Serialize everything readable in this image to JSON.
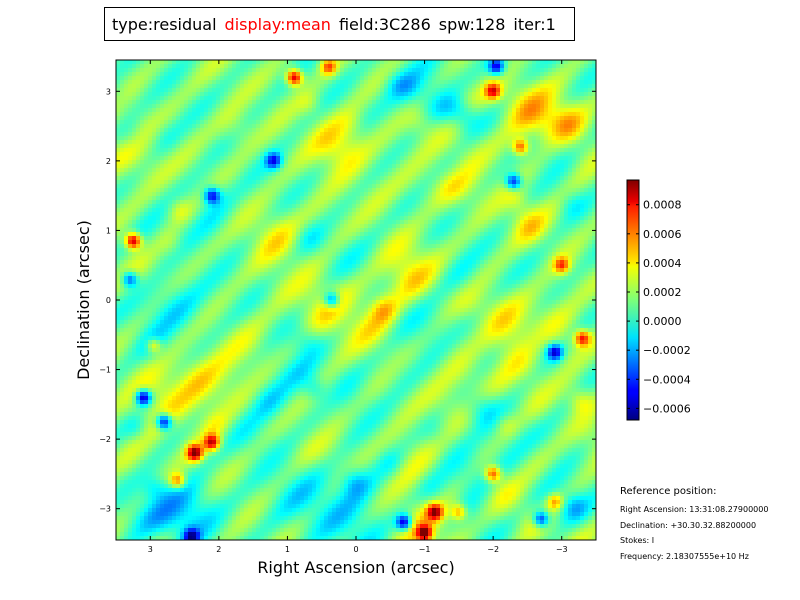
{
  "header": {
    "items": [
      {
        "key": "type",
        "text": "type:residual",
        "active": false
      },
      {
        "key": "display",
        "text": "display:mean",
        "active": true
      },
      {
        "key": "field",
        "text": "field:3C286",
        "active": false
      },
      {
        "key": "spw",
        "text": "spw:128",
        "active": false
      },
      {
        "key": "iter",
        "text": "iter:1",
        "active": false
      }
    ]
  },
  "chart_data": {
    "type": "heatmap",
    "xlabel": "Right Ascension (arcsec)",
    "ylabel": "Declination (arcsec)",
    "xlim": [
      3.5,
      -3.5
    ],
    "ylim": [
      -3.45,
      3.45
    ],
    "x_ticks": [
      3,
      2,
      1,
      0,
      -1,
      -2,
      -3
    ],
    "y_ticks": [
      3,
      2,
      1,
      0,
      -1,
      -2,
      -3
    ],
    "colormap": "jet",
    "colorbar": {
      "vmin": -0.00068,
      "vmax": 0.00097,
      "ticks": [
        {
          "value": 0.0008,
          "label": "0.0008"
        },
        {
          "value": 0.0006,
          "label": "0.0006"
        },
        {
          "value": 0.0004,
          "label": "0.0004"
        },
        {
          "value": 0.0002,
          "label": "0.0002"
        },
        {
          "value": 0.0,
          "label": "0.0000"
        },
        {
          "value": -0.0002,
          "label": "−0.0002"
        },
        {
          "value": -0.0004,
          "label": "−0.0004"
        },
        {
          "value": -0.0006,
          "label": "−0.0006"
        }
      ]
    },
    "peaks": [
      {
        "x": 0.9,
        "y": 3.2,
        "v": 0.00092
      },
      {
        "x": 3.25,
        "y": 0.85,
        "v": 0.00094
      },
      {
        "x": 2.35,
        "y": -2.2,
        "v": 0.0009
      },
      {
        "x": 2.1,
        "y": -2.05,
        "v": 0.0008
      },
      {
        "x": -1.15,
        "y": -3.05,
        "v": 0.0008
      },
      {
        "x": -1.0,
        "y": -3.35,
        "v": 0.00085
      },
      {
        "x": -2.0,
        "y": -2.5,
        "v": 0.0007
      },
      {
        "x": -2.0,
        "y": 3.0,
        "v": 0.0007
      },
      {
        "x": -2.4,
        "y": 2.2,
        "v": 0.00065
      },
      {
        "x": -3.3,
        "y": -0.55,
        "v": 0.00075
      },
      {
        "x": -3.0,
        "y": 0.5,
        "v": 0.0006
      },
      {
        "x": 0.4,
        "y": 3.35,
        "v": 0.0006
      },
      {
        "x": 2.6,
        "y": -2.6,
        "v": 0.0006
      },
      {
        "x": 2.95,
        "y": -0.65,
        "v": 0.00055
      },
      {
        "x": -2.9,
        "y": -2.9,
        "v": 0.0005
      },
      {
        "x": -1.5,
        "y": -3.05,
        "v": 0.0005
      }
    ],
    "troughs": [
      {
        "x": 3.1,
        "y": -1.4,
        "v": -0.00065
      },
      {
        "x": 2.8,
        "y": -1.75,
        "v": -0.0006
      },
      {
        "x": 2.4,
        "y": -3.4,
        "v": -0.0005
      },
      {
        "x": -0.7,
        "y": -3.2,
        "v": -0.0006
      },
      {
        "x": -2.3,
        "y": 1.7,
        "v": -0.0005
      },
      {
        "x": -2.9,
        "y": -0.75,
        "v": -0.0005
      },
      {
        "x": -2.05,
        "y": 3.35,
        "v": -0.0005
      },
      {
        "x": 2.1,
        "y": 1.5,
        "v": -0.00045
      },
      {
        "x": 0.35,
        "y": 0.0,
        "v": -0.0004
      },
      {
        "x": 1.2,
        "y": 2.0,
        "v": -0.0004
      },
      {
        "x": -2.7,
        "y": -3.15,
        "v": -0.0005
      },
      {
        "x": 3.3,
        "y": 0.3,
        "v": -0.0004
      }
    ]
  },
  "reference": {
    "title": "Reference position:",
    "right_ascension": "Right Ascension: 13:31:08.27900000",
    "declination": "Declination: +30.30.32.88200000",
    "stokes": "Stokes: I",
    "frequency": "Frequency: 2.18307555e+10 Hz"
  }
}
